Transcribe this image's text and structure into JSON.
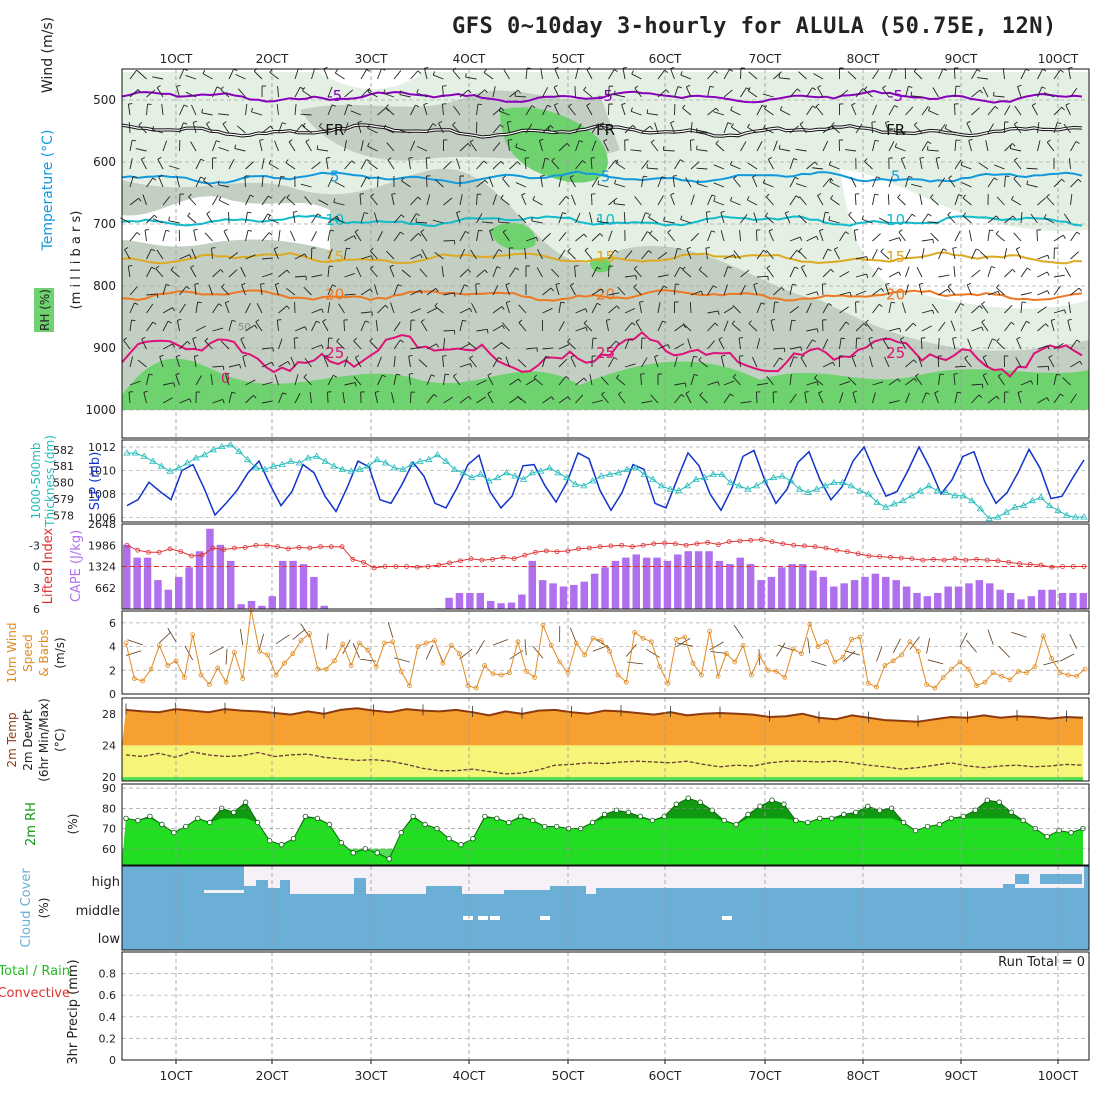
{
  "title": "GFS 0~10day 3-hourly for ALULA (50.75E, 12N)",
  "date_labels": [
    "1OCT",
    "2OCT",
    "3OCT",
    "4OCT",
    "5OCT",
    "6OCT",
    "7OCT",
    "8OCT",
    "9OCT",
    "10OCT"
  ],
  "colors": {
    "wind_barbs": "#222222",
    "t_minus5": "#8800bb",
    "t_zero": "#111111",
    "t5": "#1199dd",
    "t10": "#11bbcc",
    "t15": "#ddaa22",
    "t20": "#ee7722",
    "t25": "#dd1177",
    "rh_light": "#e4f0e4",
    "rh_mid": "#c3cfc3",
    "rh_green": "#6ed26e",
    "slp": "#1133cc",
    "thickness": "#22bbbb",
    "lifted_index": "#dd3333",
    "cape": "#b070ee",
    "wind10m": "#e08a22",
    "barbs_brown": "#5a3a1a",
    "temp_fill": "#f5a030",
    "temp_line": "#8b3a10",
    "dew_fill": "#f5f57a",
    "dew_line": "#6a3a3a",
    "bottom_green": "#55dd55",
    "rh_fill": "#22dd22",
    "rh_fill_dark": "#119911",
    "cloud_blue": "#6baed6",
    "cloud_white": "#f6f1f6"
  },
  "chart_data": [
    {
      "panel": "upper_air",
      "type": "heatmap",
      "ylabel_lines": [
        "Wind (m/s)",
        "Temperature (°C)",
        "RH (%)",
        "(m i l l i b a r s)"
      ],
      "y_ticks": [
        500,
        600,
        700,
        800,
        900,
        1000
      ],
      "ylim": [
        450,
        1000
      ],
      "isotherms": [
        {
          "label": "-5",
          "pressure": 495
        },
        {
          "label": "FR",
          "pressure": 550
        },
        {
          "label": "5",
          "pressure": 625
        },
        {
          "label": "10",
          "pressure": 695
        },
        {
          "label": "15",
          "pressure": 755
        },
        {
          "label": "20",
          "pressure": 815
        },
        {
          "label": "25",
          "pressure": 910
        }
      ],
      "rh_labels": [
        "50",
        "0"
      ]
    },
    {
      "panel": "slp_thickness",
      "type": "line",
      "ylabel": "SLP (mb)",
      "ylabel_left": "1000-500mb Thickness (dm)",
      "y_ticks_left": [
        578,
        579,
        580,
        581,
        582
      ],
      "y_ticks_right": [
        1006,
        1008,
        1010,
        1012
      ],
      "slp_range": [
        1005.6,
        1012.6
      ],
      "thickness_range": [
        577.6,
        582.6
      ],
      "series": [
        {
          "name": "SLP",
          "values": [
            1007,
            1007.5,
            1009,
            1008.2,
            1007.5,
            1010,
            1010.5,
            1008.5,
            1006.2,
            1007.2,
            1008.3,
            1009.8,
            1010.8,
            1008.8,
            1007,
            1008.2,
            1010.5,
            1009.8,
            1007.8,
            1006.5,
            1008.5,
            1010.8,
            1010.3,
            1007.5,
            1007.2,
            1008.8,
            1010.7,
            1009.5,
            1007.2,
            1006.8,
            1008.5,
            1010.5,
            1011.3,
            1008.2,
            1006.8,
            1007.8,
            1010.4,
            1010.5,
            1008.7,
            1007.3,
            1009,
            1011.5,
            1011,
            1008.3,
            1006.6,
            1008.1,
            1010.5,
            1010.1,
            1007.2,
            1006.8,
            1009.2,
            1011.5,
            1010.4,
            1008,
            1006.6,
            1008.5,
            1011.2,
            1011.7,
            1009.1,
            1007.2,
            1008.4,
            1010.7,
            1011.6,
            1009.2,
            1007.5,
            1008.6,
            1010.8,
            1012,
            1009.8,
            1007.8,
            1008.2,
            1010,
            1012,
            1010.2,
            1008,
            1009.2,
            1011.2,
            1011.6,
            1009,
            1007.2,
            1008.1,
            1009.8,
            1011.8,
            1010.2,
            1007.6,
            1007.8,
            1009.4,
            1010.9
          ]
        },
        {
          "name": "Thickness",
          "values": [
            581.8,
            581.8,
            581.6,
            581.3,
            581.0,
            580.7,
            580.9,
            581.2,
            581.5,
            581.7,
            582.0,
            582.2,
            582.3,
            581.9,
            581.4,
            580.9,
            580.8,
            581.0,
            581.1,
            581.3,
            581.2,
            581.5,
            581.6,
            581.3,
            581.0,
            580.8,
            580.7,
            580.8,
            581.0,
            581.4,
            581.2,
            580.9,
            580.8,
            581.1,
            581.3,
            581.4,
            581.7,
            581.3,
            580.8,
            580.6,
            580.3,
            580.5,
            580.1,
            580.3,
            580.6,
            580.4,
            580.2,
            580.6,
            580.7,
            580.9,
            580.6,
            580.3,
            579.9,
            579.8,
            580.1,
            580.4,
            580.5,
            580.6,
            580.8,
            580.9,
            580.5,
            580.2,
            579.8,
            579.6,
            579.5,
            579.8,
            580.2,
            580.3,
            580.5,
            580.5,
            580.0,
            579.8,
            579.6,
            579.8,
            580.1,
            580.3,
            580.4,
            580.1,
            579.6,
            579.4,
            579.6,
            579.8,
            580.0,
            580.0,
            579.8,
            579.5,
            579.3,
            578.8,
            578.5,
            578.7,
            578.9,
            579.2,
            579.5,
            579.8,
            579.5,
            579.4,
            579.2,
            579.2,
            578.9,
            578.4,
            577.8,
            577.9,
            578.2,
            578.5,
            578.6,
            578.9,
            579.1,
            578.6,
            578.3,
            578.0,
            577.9,
            577.9
          ]
        }
      ]
    },
    {
      "panel": "instability",
      "type": "bar",
      "ylabel": "CAPE (J/kg)",
      "ylabel_left": "Lifted Index",
      "li_ticks": [
        -3,
        0,
        3,
        6
      ],
      "cape_ticks": [
        662,
        1324,
        1986,
        2648
      ],
      "cape_range": [
        0,
        2648
      ],
      "li_range": [
        -6,
        6
      ],
      "series": [
        {
          "name": "CAPE",
          "values": [
            2000,
            1600,
            1600,
            900,
            600,
            1000,
            1300,
            1800,
            2500,
            2000,
            1500,
            150,
            250,
            100,
            400,
            1500,
            1500,
            1400,
            1000,
            100,
            0,
            0,
            0,
            0,
            0,
            0,
            0,
            0,
            0,
            0,
            20,
            350,
            500,
            500,
            500,
            250,
            180,
            200,
            450,
            1500,
            900,
            800,
            700,
            750,
            850,
            1100,
            1300,
            1500,
            1600,
            1700,
            1600,
            1600,
            1500,
            1700,
            1800,
            1800,
            1800,
            1500,
            1400,
            1600,
            1400,
            900,
            1000,
            1300,
            1400,
            1400,
            1200,
            1000,
            700,
            800,
            900,
            1000,
            1100,
            1000,
            900,
            700,
            500,
            400,
            500,
            700,
            700,
            800,
            900,
            800,
            600,
            500,
            300,
            400,
            600,
            600,
            500,
            500,
            500
          ]
        },
        {
          "name": "Lifted Index",
          "values": [
            -3,
            -2.3,
            -2,
            -2,
            -2.5,
            -2.1,
            -1.5,
            -1.6,
            -2.6,
            -2.4,
            -2.6,
            -2.7,
            -3,
            -3,
            -2.8,
            -2.5,
            -2.7,
            -2.6,
            -2.8,
            -2.8,
            -2.8,
            -1,
            -0.6,
            0.2,
            0,
            0,
            0,
            0.1,
            0,
            -0.2,
            -0.5,
            -0.8,
            -1.1,
            -0.9,
            -1,
            -1.3,
            -1.1,
            -1.6,
            -2,
            -2.2,
            -2.1,
            -2.2,
            -2.5,
            -2.6,
            -2.8,
            -2.9,
            -3,
            -2.8,
            -3,
            -3.2,
            -3.3,
            -3.2,
            -3,
            -3.2,
            -3.4,
            -3.1,
            -3.5,
            -3.6,
            -3.7,
            -3.8,
            -3.5,
            -3.2,
            -3,
            -2.9,
            -2.8,
            -2.6,
            -2.3,
            -2.1,
            -1.8,
            -1.5,
            -1.4,
            -1.3,
            -1.2,
            -1.1,
            -0.9,
            -1,
            -0.9,
            -1.1,
            -0.9,
            -1,
            -0.9,
            -0.8,
            -0.6,
            -0.4,
            -0.3,
            -0.2,
            0.1,
            0,
            0,
            0
          ]
        }
      ]
    },
    {
      "panel": "wind10m",
      "type": "line",
      "ylabel_lines": [
        "10m Wind",
        "Speed",
        "& Barbs",
        "(m/s)"
      ],
      "y_ticks": [
        0,
        2,
        4,
        6
      ],
      "ylim": [
        0,
        7
      ],
      "series": [
        {
          "name": "10m Wind Speed",
          "values": [
            4.3,
            1.3,
            1.1,
            2.1,
            4.1,
            2.4,
            2.8,
            1.4,
            5.0,
            1.6,
            0.8,
            2.2,
            1.0,
            3.5,
            1.3,
            7.1,
            3.6,
            3.3,
            1.6,
            2.6,
            3.4,
            4.5,
            5.1,
            2.1,
            2.1,
            2.8,
            4.2,
            2.4,
            4.3,
            3.7,
            2.3,
            4.3,
            4.4,
            1.9,
            0.7,
            4.0,
            4.3,
            4.5,
            2.6,
            4.1,
            3.4,
            0.7,
            0.5,
            2.4,
            1.7,
            1.6,
            1.8,
            4.4,
            1.9,
            1.4,
            5.8,
            4.1,
            2.7,
            1.8,
            4.3,
            3.3,
            4.7,
            4.5,
            3.6,
            1.6,
            1.0,
            5.2,
            4.7,
            4.4,
            2.3,
            0.9,
            4.6,
            4.8,
            2.6,
            1.6,
            5.3,
            1.5,
            3.4,
            2.7,
            4.1,
            1.6,
            3.2,
            2.0,
            1.9,
            1.4,
            3.8,
            3.4,
            5.9,
            4.0,
            4.4,
            2.7,
            3.1,
            4.6,
            4.8,
            0.9,
            0.6,
            2.4,
            2.8,
            3.3,
            4.4,
            3.6,
            0.8,
            0.5,
            1.4,
            2.1,
            2.7,
            2.1,
            0.7,
            1.0,
            1.8,
            1.5,
            1.2,
            1.9,
            1.8,
            2.3,
            4.9,
            3.0,
            1.8,
            1.6,
            1.5,
            2.1
          ]
        }
      ]
    },
    {
      "panel": "temperature",
      "type": "area",
      "ylabel_lines": [
        "2m Temp",
        "2m DewPt",
        "(6hr Min/Max)",
        "(°C)"
      ],
      "y_ticks": [
        20,
        24,
        28
      ],
      "ylim": [
        19.5,
        30
      ],
      "series": [
        {
          "name": "2m Temp",
          "values": [
            28.5,
            28.3,
            28.2,
            28.6,
            28.4,
            28.2,
            28.6,
            28.4,
            28.3,
            28.1,
            27.9,
            28.3,
            28.0,
            28.5,
            28.7,
            28.4,
            28.2,
            28.6,
            28.4,
            28.3,
            28.5,
            28.2,
            27.8,
            28.3,
            28.0,
            28.4,
            28.5,
            28.2,
            28.0,
            28.4,
            28.3,
            28.1,
            27.9,
            28.2,
            27.8,
            28.0,
            28.1,
            28.0,
            27.9,
            27.6,
            27.7,
            28.0,
            27.5,
            27.3,
            27.8,
            27.5,
            27.2,
            27.1,
            27.0,
            27.3,
            27.6,
            27.5,
            27.8,
            27.5,
            27.7,
            27.6,
            27.4,
            27.6,
            27.5
          ]
        },
        {
          "name": "2m DewPt",
          "values": [
            22.8,
            22.6,
            23.0,
            22.5,
            23.2,
            22.8,
            22.6,
            22.7,
            23.1,
            22.6,
            22.8,
            22.9,
            22.5,
            22.3,
            22.1,
            22.2,
            22.0,
            21.6,
            21.1,
            20.8,
            20.8,
            21.0,
            20.7,
            20.4,
            20.5,
            20.9,
            21.5,
            21.6,
            21.8,
            21.7,
            21.9,
            22.0,
            21.9,
            21.8,
            22.0,
            21.6,
            21.3,
            21.5,
            21.4,
            21.8,
            22.0,
            22.0,
            21.9,
            22.0,
            21.8,
            21.5,
            21.3,
            21.0,
            21.2,
            21.5,
            21.8,
            21.4,
            21.2,
            21.4,
            21.5,
            21.3,
            21.4,
            21.6,
            21.5
          ]
        }
      ]
    },
    {
      "panel": "rh2m",
      "type": "area",
      "ylabel_lines": [
        "2m RH",
        "(%)"
      ],
      "y_ticks": [
        60,
        70,
        80,
        90
      ],
      "ylim": [
        52,
        92
      ],
      "series": [
        {
          "name": "2m RH",
          "values": [
            75,
            74,
            76,
            72,
            68,
            71,
            75,
            73,
            80,
            78,
            83,
            73,
            64,
            62,
            65,
            76,
            75,
            72,
            63,
            58,
            60,
            58,
            55,
            68,
            76,
            72,
            70,
            65,
            62,
            65,
            76,
            75,
            73,
            76,
            74,
            71,
            71,
            70,
            70,
            73,
            77,
            79,
            78,
            76,
            74,
            76,
            82,
            85,
            83,
            79,
            74,
            72,
            77,
            81,
            84,
            82,
            74,
            73,
            75,
            75,
            77,
            78,
            81,
            79,
            80,
            73,
            69,
            71,
            72,
            75,
            76,
            79,
            84,
            83,
            78,
            74,
            70,
            66,
            69,
            68,
            70
          ]
        }
      ]
    },
    {
      "panel": "cloud_cover",
      "type": "heatmap",
      "ylabel_lines": [
        "Cloud Cover",
        "(%)"
      ],
      "levels": [
        "high",
        "middle",
        "low"
      ]
    },
    {
      "panel": "precip",
      "type": "bar",
      "ylabel_lines": [
        "3hr Precip (mm)",
        "Total / Rain",
        "Convective"
      ],
      "y_ticks": [
        "0",
        "0.2",
        "0.4",
        "0.6",
        "0.8"
      ],
      "ylim": [
        0,
        1
      ],
      "run_total": "Run Total = 0",
      "values": []
    }
  ]
}
